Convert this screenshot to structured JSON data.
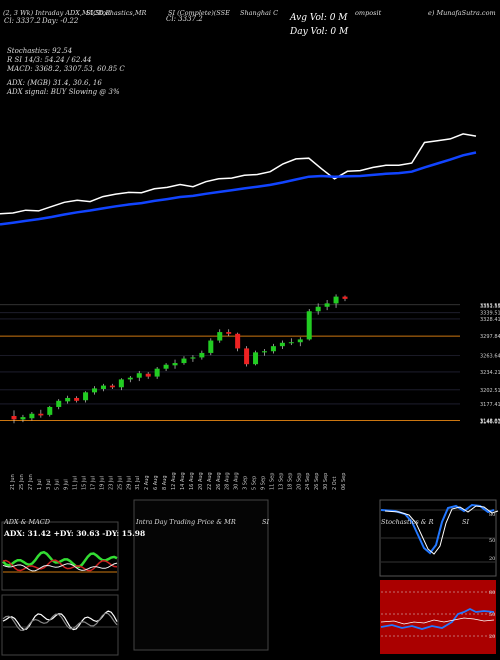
{
  "header": {
    "top_left_1": "(2, 3 Wk) Intraday ADX,MACD,R",
    "top_left_2": "SI,Stochastics,MR",
    "top_left_3": "SI (Complete)(SSE",
    "top_left_4": "Shanghai  C",
    "top_left_5": "omposit",
    "top_left_6": "e) MunafaSutra.com",
    "row2_a": "Cl: 3337.2",
    "row2_b": "Day: -0.22",
    "row2_c": "Cl: 3337.2",
    "row2_d": "Cl: 3337.2",
    "row2_e": "3337.2",
    "row2_f": "Cl: 3337.2",
    "avg_vol": "Avg Vol: 0   M",
    "day_vol": "Day Vol: 0   M"
  },
  "indicators": {
    "stoch_line": "Stochastics: 92.54",
    "rsi_line": "R  SI 14/3: 54.24  / 62.44",
    "macd_line": "MACD: 3368.2,  3307.53,  60.85 C",
    "adx_line": "ADX:                              (MGB) 31.4,  30.6,  16",
    "adx_signal": "ADX  signal:                            BUY Slowing @ 3%"
  },
  "price_labels": [
    "3353.53",
    "3351.55",
    "3339.51",
    "3328.41",
    "3297.84",
    "3263.64",
    "3234.21",
    "3202.51",
    "3177.41",
    "3148.01",
    "3146.87",
    "3146.01"
  ],
  "dates": [
    "21 Jun",
    "25 Jun",
    "27 Jun",
    "1 Jul",
    "3 Jul",
    "5 Jul",
    "9 Jul",
    "11 Jul",
    "15 Jul",
    "17 Jul",
    "19 Jul",
    "23 Jul",
    "25 Jul",
    "29 Jul",
    "31 Jul",
    "2 Aug",
    "6 Aug",
    "8 Aug",
    "12 Aug",
    "14 Aug",
    "16 Aug",
    "20 Aug",
    "22 Aug",
    "26 Aug",
    "28 Aug",
    "30 Aug",
    "3 Sep",
    "5 Sep",
    "9 Sep",
    "11 Sep",
    "13 Sep",
    "18 Sep",
    "20 Sep",
    "24 Sep",
    "26 Sep",
    "30 Sep",
    "2 Oct",
    "06 Sep"
  ],
  "panels": {
    "adx_title": "ADX  & MACD",
    "adx_values": "ADX: 31.42  +DY: 30.63 -DY: 15.98",
    "intraday_title": "Intra  Day Trading Price  & MR",
    "intraday_title_b": "SI",
    "stoch_title": "Stochastics & R",
    "stoch_title_b": "SI",
    "stoch_ticks": [
      "80",
      "50",
      "20"
    ],
    "rsi_ticks": [
      "80",
      "50",
      "20"
    ]
  },
  "colors": {
    "up": "#22cc22",
    "down": "#ee2222",
    "ema": "#1144ff",
    "price": "#ffffff",
    "orange": "#cc7711",
    "rsi_bg": "#aa0000"
  },
  "chart_data": [
    {
      "type": "line",
      "title": "",
      "series": [
        {
          "values": [
            3150,
            3152,
            3160,
            3158,
            3170,
            3182,
            3188,
            3184,
            3198,
            3205,
            3210,
            3209,
            3220,
            3224,
            3232,
            3226,
            3240,
            3248,
            3250,
            3258,
            3260,
            3268,
            3290,
            3304,
            3306,
            3276,
            3248,
            3269,
            3271,
            3280,
            3286,
            3286,
            3292,
            3350,
            3355,
            3360,
            3374,
            3368
          ]
        },
        {
          "values": [
            3120,
            3125,
            3130,
            3135,
            3141,
            3148,
            3154,
            3159,
            3165,
            3171,
            3176,
            3180,
            3186,
            3191,
            3197,
            3200,
            3206,
            3211,
            3216,
            3221,
            3226,
            3231,
            3238,
            3246,
            3254,
            3256,
            3254,
            3255,
            3256,
            3259,
            3262,
            3264,
            3268,
            3280,
            3291,
            3302,
            3314,
            3322
          ]
        }
      ]
    },
    {
      "type": "bar",
      "title": "",
      "categories": [
        "21 Jun",
        "25 Jun",
        "27 Jun",
        "1 Jul",
        "3 Jul",
        "5 Jul",
        "9 Jul",
        "11 Jul",
        "15 Jul",
        "17 Jul",
        "19 Jul",
        "23 Jul",
        "25 Jul",
        "29 Jul",
        "31 Jul",
        "2 Aug",
        "6 Aug",
        "8 Aug",
        "12 Aug",
        "14 Aug",
        "16 Aug",
        "20 Aug",
        "22 Aug",
        "26 Aug",
        "28 Aug",
        "30 Aug",
        "3 Sep",
        "5 Sep",
        "9 Sep",
        "11 Sep",
        "13 Sep",
        "18 Sep",
        "20 Sep",
        "24 Sep",
        "26 Sep",
        "30 Sep",
        "2 Oct",
        "06 Sep"
      ],
      "ohlc": [
        [
          3156,
          3166,
          3143,
          3150
        ],
        [
          3150,
          3158,
          3145,
          3154
        ],
        [
          3152,
          3163,
          3148,
          3160
        ],
        [
          3160,
          3167,
          3153,
          3157
        ],
        [
          3158,
          3174,
          3155,
          3172
        ],
        [
          3172,
          3186,
          3168,
          3183
        ],
        [
          3182,
          3192,
          3178,
          3188
        ],
        [
          3188,
          3191,
          3180,
          3183
        ],
        [
          3184,
          3200,
          3180,
          3198
        ],
        [
          3198,
          3209,
          3194,
          3205
        ],
        [
          3204,
          3213,
          3200,
          3210
        ],
        [
          3210,
          3213,
          3204,
          3207
        ],
        [
          3207,
          3223,
          3202,
          3221
        ],
        [
          3221,
          3227,
          3216,
          3224
        ],
        [
          3224,
          3236,
          3218,
          3232
        ],
        [
          3231,
          3234,
          3222,
          3226
        ],
        [
          3226,
          3243,
          3222,
          3240
        ],
        [
          3240,
          3250,
          3236,
          3247
        ],
        [
          3246,
          3256,
          3240,
          3250
        ],
        [
          3250,
          3262,
          3247,
          3258
        ],
        [
          3258,
          3264,
          3252,
          3260
        ],
        [
          3260,
          3272,
          3256,
          3268
        ],
        [
          3268,
          3294,
          3264,
          3290
        ],
        [
          3290,
          3310,
          3286,
          3305
        ],
        [
          3305,
          3310,
          3298,
          3302
        ],
        [
          3302,
          3304,
          3271,
          3276
        ],
        [
          3276,
          3280,
          3244,
          3248
        ],
        [
          3248,
          3272,
          3246,
          3269
        ],
        [
          3269,
          3275,
          3263,
          3271
        ],
        [
          3271,
          3284,
          3267,
          3280
        ],
        [
          3280,
          3290,
          3275,
          3286
        ],
        [
          3286,
          3294,
          3282,
          3287
        ],
        [
          3287,
          3296,
          3280,
          3292
        ],
        [
          3292,
          3346,
          3290,
          3342
        ],
        [
          3342,
          3356,
          3336,
          3350
        ],
        [
          3350,
          3362,
          3344,
          3356
        ],
        [
          3356,
          3372,
          3348,
          3368
        ],
        [
          3368,
          3370,
          3360,
          3364
        ]
      ]
    }
  ]
}
